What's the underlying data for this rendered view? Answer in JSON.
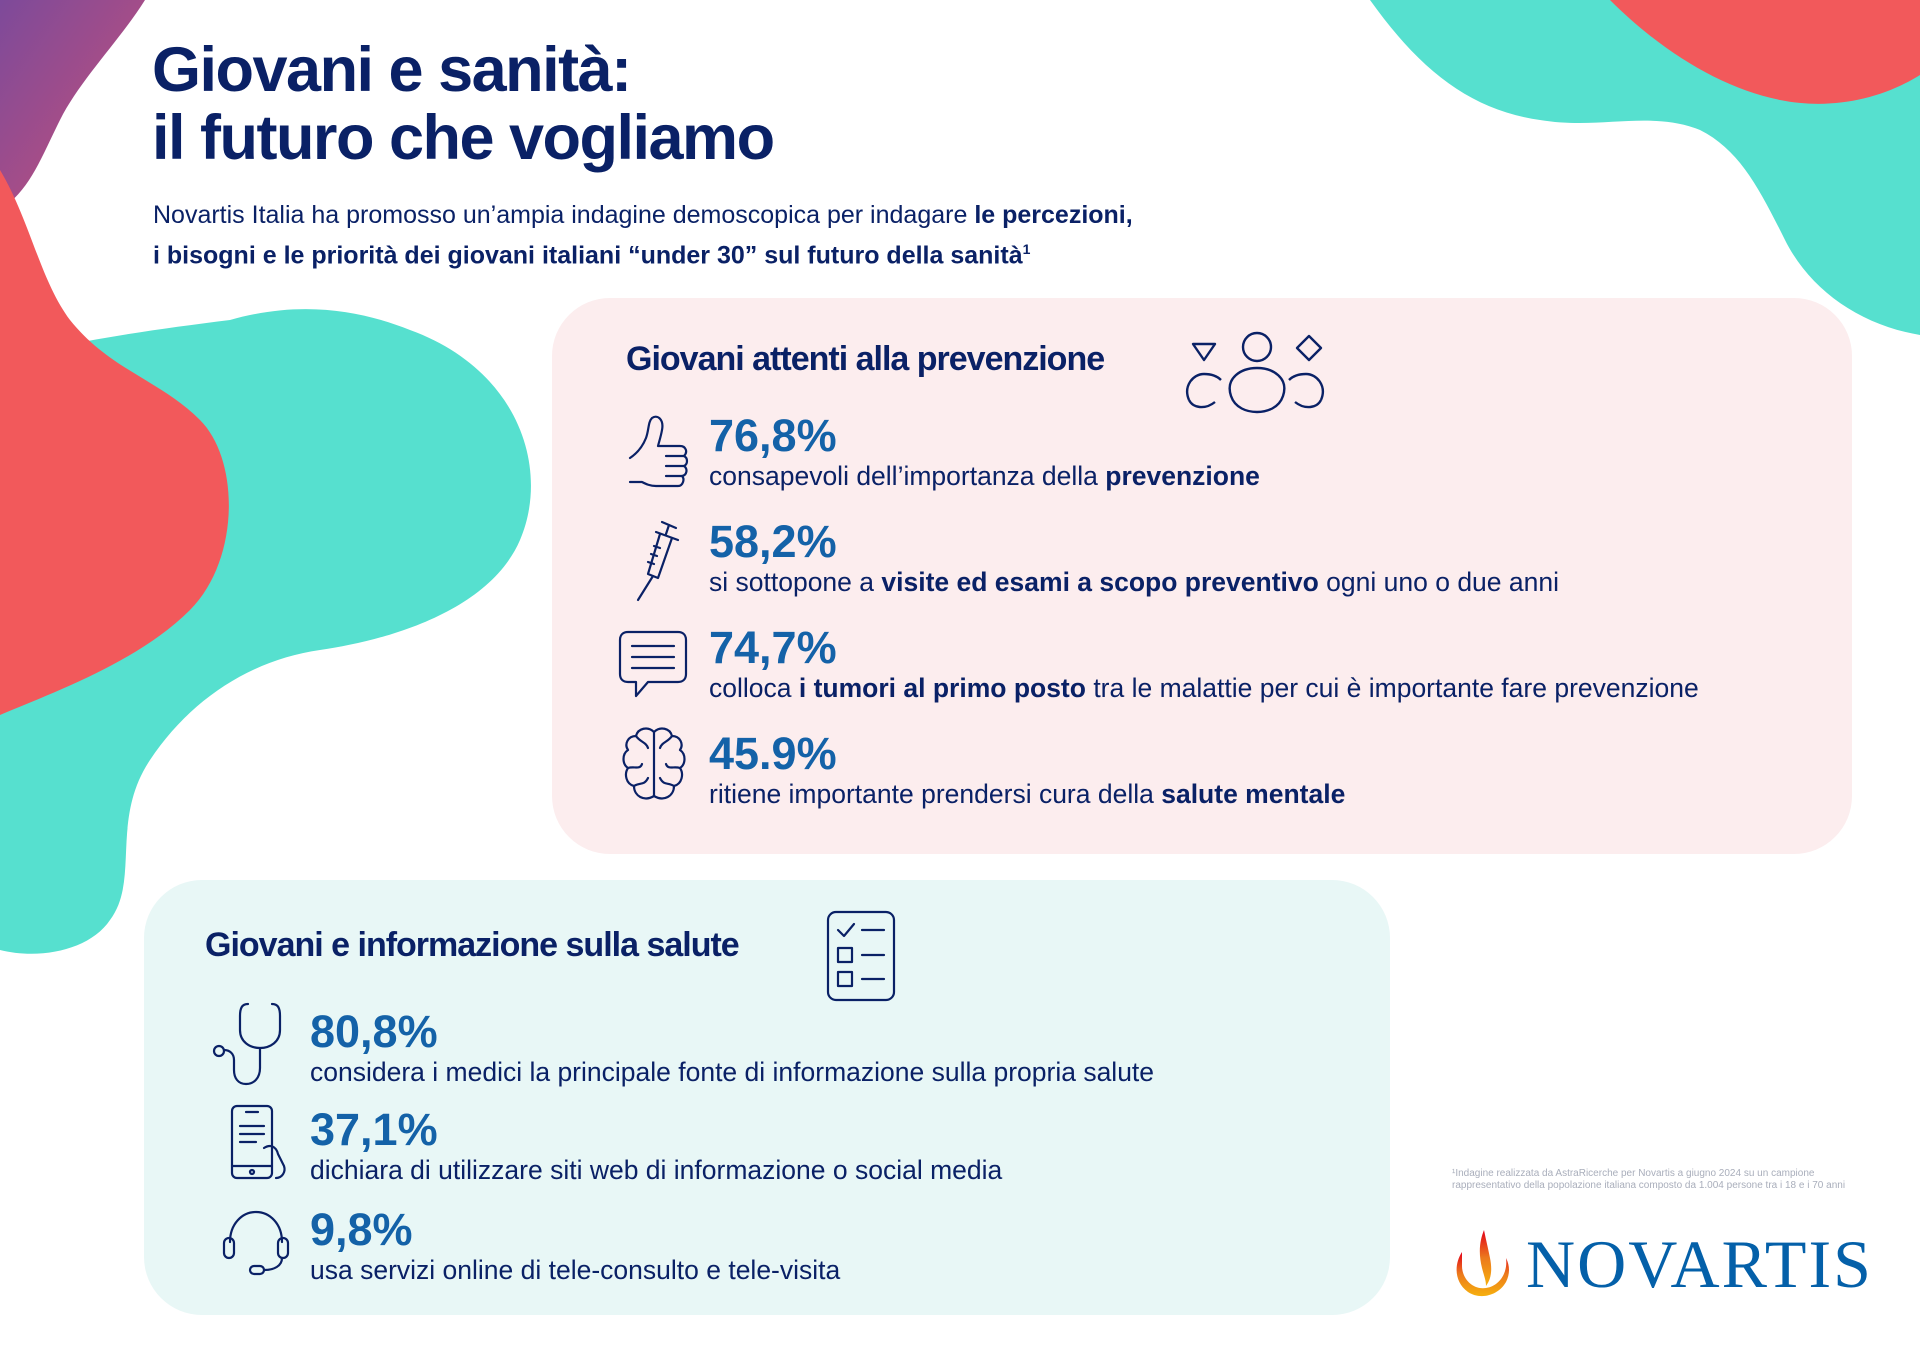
{
  "header": {
    "title_line1": "Giovani e sanità:",
    "title_line2": "il futuro che vogliamo",
    "intro_line1_a": "Novartis Italia ha promosso un’ampia indagine demoscopica per indagare ",
    "intro_line1_b": "le percezioni,",
    "intro_line2_b": "i bisogni e le priorità dei giovani italiani “under 30” sul futuro della sanità",
    "intro_sup": "1"
  },
  "prevention": {
    "title": "Giovani attenti alla prevenzione",
    "title_icon": "people-group-icon",
    "stats": [
      {
        "icon": "thumbs-up-icon",
        "value": "76,8%",
        "pre": "consapevoli dell’importanza della ",
        "bold": "prevenzione",
        "post": ""
      },
      {
        "icon": "syringe-icon",
        "value": "58,2%",
        "pre": "si sottopone a ",
        "bold": "visite ed esami a scopo preventivo",
        "post": " ogni uno o due anni"
      },
      {
        "icon": "chat-bubble-icon",
        "value": "74,7%",
        "pre": "colloca ",
        "bold": "i tumori al primo posto",
        "post": " tra le malattie per cui è importante fare prevenzione"
      },
      {
        "icon": "brain-icon",
        "value": "45.9%",
        "pre": "ritiene importante prendersi cura della ",
        "bold": "salute mentale",
        "post": ""
      }
    ]
  },
  "information": {
    "title": "Giovani e informazione sulla salute",
    "title_icon": "checklist-icon",
    "stats": [
      {
        "icon": "stethoscope-icon",
        "value": "80,8%",
        "desc": "considera i medici la principale fonte di informazione sulla propria salute"
      },
      {
        "icon": "smartphone-icon",
        "value": "37,1%",
        "desc": "dichiara di utilizzare siti web di informazione o social media"
      },
      {
        "icon": "headset-icon",
        "value": "9,8%",
        "desc": "usa servizi online di tele-consulto e tele-visita"
      }
    ]
  },
  "footnote": {
    "line1": "¹Indagine realizzata da AstraRicerche per Novartis a giugno 2024 su un campione",
    "line2": "rappresentativo della popolazione italiana composto da 1.004 persone tra i 18 e i 70 anni"
  },
  "logo": {
    "text": "NOVARTIS",
    "icon": "novartis-flame-icon"
  },
  "colors": {
    "navy": "#0a2166",
    "blue": "#1462a8",
    "teal": "#56e0cf",
    "coral": "#f2595b",
    "purple": "#8c4a93",
    "pink_panel": "#fcedee",
    "teal_panel": "#e8f7f6"
  }
}
